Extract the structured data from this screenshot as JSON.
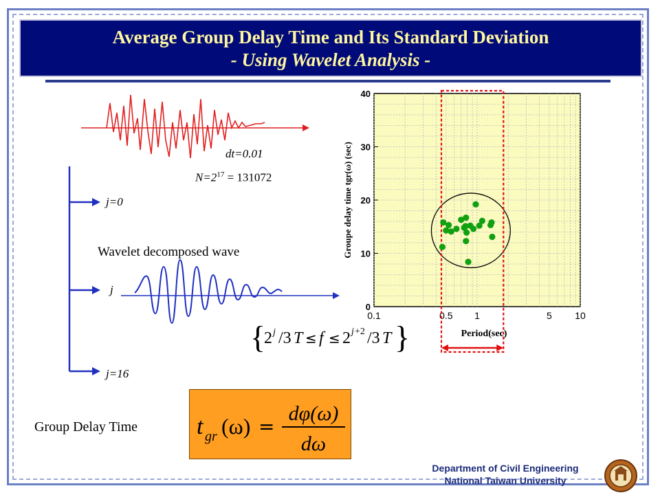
{
  "slide": {
    "title_line1": "Average Group Delay Time and Its Standard Deviation",
    "title_line2": "- Using Wavelet Analysis -"
  },
  "signal": {
    "dt_label": "dt=0.01",
    "n_label_prefix": "N=2",
    "n_exponent": "17",
    "n_label_suffix": " = 131072"
  },
  "decomposition": {
    "j0_label": "j=0",
    "j_label": "j",
    "j16_label": "j=16",
    "caption": "Wavelet decomposed wave",
    "band_formula": "{2^j/3T ≤ f ≤ 2^(j+2)/3T}"
  },
  "group_delay": {
    "label": "Group Delay Time",
    "formula_lhs": "t",
    "formula_sub": "gr",
    "formula_arg": "(ω)",
    "formula_num": "dφ(ω)",
    "formula_den": "dω"
  },
  "chart_data": {
    "type": "scatter",
    "xlabel": "Period(sec)",
    "ylabel": "Groupe delay time tgr(ω) (sec)",
    "xscale": "log",
    "xlim": [
      0.1,
      10
    ],
    "ylim": [
      0,
      40
    ],
    "x_ticks": [
      {
        "value": 0.1,
        "label": "0.1"
      },
      {
        "value": 0.5,
        "label": "0.5"
      },
      {
        "value": 1,
        "label": "1"
      },
      {
        "value": 5,
        "label": "5"
      },
      {
        "value": 10,
        "label": "10"
      }
    ],
    "y_ticks": [
      {
        "value": 0,
        "label": "0"
      },
      {
        "value": 10,
        "label": "10"
      },
      {
        "value": 20,
        "label": "20"
      },
      {
        "value": 30,
        "label": "30"
      },
      {
        "value": 40,
        "label": "40"
      }
    ],
    "grid": true,
    "points": [
      {
        "x": 0.46,
        "y": 11.2
      },
      {
        "x": 0.47,
        "y": 15.8
      },
      {
        "x": 0.5,
        "y": 14.3
      },
      {
        "x": 0.53,
        "y": 15.3
      },
      {
        "x": 0.56,
        "y": 14.1
      },
      {
        "x": 0.63,
        "y": 14.6
      },
      {
        "x": 0.7,
        "y": 16.3
      },
      {
        "x": 0.75,
        "y": 14.8
      },
      {
        "x": 0.77,
        "y": 15.1
      },
      {
        "x": 0.78,
        "y": 16.7
      },
      {
        "x": 0.78,
        "y": 12.3
      },
      {
        "x": 0.79,
        "y": 13.9
      },
      {
        "x": 0.82,
        "y": 8.4
      },
      {
        "x": 0.86,
        "y": 15.2
      },
      {
        "x": 0.92,
        "y": 14.6
      },
      {
        "x": 0.97,
        "y": 19.2
      },
      {
        "x": 1.05,
        "y": 15.2
      },
      {
        "x": 1.12,
        "y": 16.1
      },
      {
        "x": 1.35,
        "y": 15.3
      },
      {
        "x": 1.38,
        "y": 15.8
      },
      {
        "x": 1.4,
        "y": 13.1
      }
    ],
    "highlight_band": [
      0.45,
      1.8
    ],
    "ellipse": {
      "cx": 0.83,
      "cy": 14.3,
      "x_range": [
        0.36,
        2.1
      ],
      "y_range": [
        7.3,
        21.3
      ]
    }
  },
  "footer": {
    "dept_line1": "Department of Civil Engineering",
    "dept_line2": "National Taiwan University",
    "seal_icon": "university-seal-icon"
  },
  "colors": {
    "title_bg": "#000a78",
    "title_text": "#fff6a0",
    "signal_red": "#e02020",
    "wavelet_blue": "#2030c0",
    "plot_bg": "#fbfbc0",
    "points": "#10a010",
    "band": "#e01010",
    "formula_bg": "#ff9e20"
  }
}
